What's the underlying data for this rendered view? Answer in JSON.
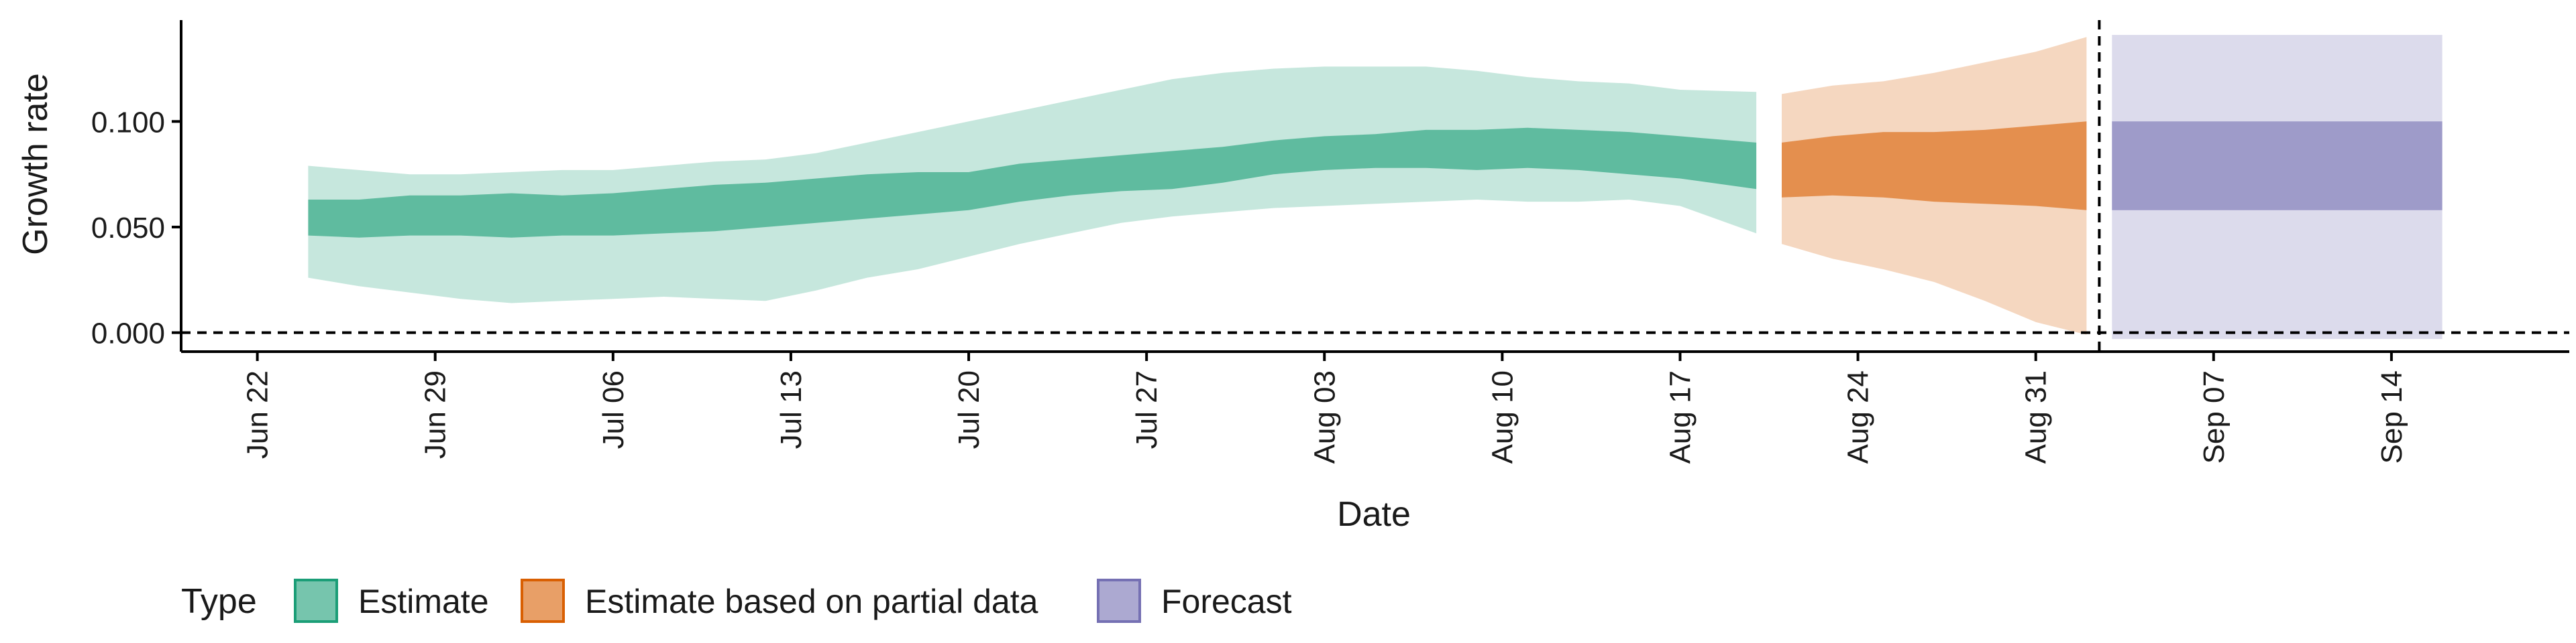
{
  "chart_data": {
    "type": "area",
    "xlabel": "Date",
    "ylabel": "Growth rate",
    "xlim": [
      "2020-06-19",
      "2020-09-21"
    ],
    "ylim": [
      -0.009,
      0.148
    ],
    "y_ticks": [
      0.0,
      0.05,
      0.1
    ],
    "y_tick_labels": [
      "0.000",
      "0.050",
      "0.100"
    ],
    "x_ticks": [
      "2020-06-22",
      "2020-06-29",
      "2020-07-06",
      "2020-07-13",
      "2020-07-20",
      "2020-07-27",
      "2020-08-03",
      "2020-08-10",
      "2020-08-17",
      "2020-08-24",
      "2020-08-31",
      "2020-09-07",
      "2020-09-14"
    ],
    "x_tick_labels": [
      "Jun 22",
      "Jun 29",
      "Jul 06",
      "Jul 13",
      "Jul 20",
      "Jul 27",
      "Aug 03",
      "Aug 10",
      "Aug 17",
      "Aug 24",
      "Aug 31",
      "Sep 07",
      "Sep 14"
    ],
    "reference_lines": {
      "horizontal_y": 0.0,
      "vertical_date": "2020-09-02",
      "style": "dashed"
    },
    "grid": false,
    "legend": {
      "title": "Type",
      "position": "bottom",
      "items": [
        {
          "label": "Estimate",
          "color": "#1b9e77"
        },
        {
          "label": "Estimate based on partial data",
          "color": "#d95f02"
        },
        {
          "label": "Forecast",
          "color": "#7570b3"
        }
      ]
    },
    "series": [
      {
        "name": "Estimate",
        "color": "#1b9e77",
        "x": [
          "2020-06-24",
          "2020-06-26",
          "2020-06-28",
          "2020-06-30",
          "2020-07-02",
          "2020-07-04",
          "2020-07-06",
          "2020-07-08",
          "2020-07-10",
          "2020-07-12",
          "2020-07-14",
          "2020-07-16",
          "2020-07-18",
          "2020-07-20",
          "2020-07-22",
          "2020-07-24",
          "2020-07-26",
          "2020-07-28",
          "2020-07-30",
          "2020-08-01",
          "2020-08-03",
          "2020-08-05",
          "2020-08-07",
          "2020-08-09",
          "2020-08-11",
          "2020-08-13",
          "2020-08-15",
          "2020-08-17",
          "2020-08-20"
        ],
        "lower_90": [
          0.026,
          0.022,
          0.019,
          0.016,
          0.014,
          0.015,
          0.016,
          0.017,
          0.016,
          0.015,
          0.02,
          0.026,
          0.03,
          0.036,
          0.042,
          0.047,
          0.052,
          0.055,
          0.057,
          0.059,
          0.06,
          0.061,
          0.062,
          0.063,
          0.062,
          0.062,
          0.063,
          0.06,
          0.047
        ],
        "lower_50": [
          0.046,
          0.045,
          0.046,
          0.046,
          0.045,
          0.046,
          0.046,
          0.047,
          0.048,
          0.05,
          0.052,
          0.054,
          0.056,
          0.058,
          0.062,
          0.065,
          0.067,
          0.068,
          0.071,
          0.075,
          0.077,
          0.078,
          0.078,
          0.077,
          0.078,
          0.077,
          0.075,
          0.073,
          0.068
        ],
        "median": [
          0.054,
          0.054,
          0.055,
          0.055,
          0.056,
          0.055,
          0.056,
          0.058,
          0.059,
          0.061,
          0.063,
          0.065,
          0.066,
          0.067,
          0.071,
          0.073,
          0.075,
          0.076,
          0.079,
          0.082,
          0.084,
          0.085,
          0.086,
          0.086,
          0.087,
          0.086,
          0.085,
          0.083,
          0.079
        ],
        "upper_50": [
          0.063,
          0.063,
          0.065,
          0.065,
          0.066,
          0.065,
          0.066,
          0.068,
          0.07,
          0.071,
          0.073,
          0.075,
          0.076,
          0.076,
          0.08,
          0.082,
          0.084,
          0.086,
          0.088,
          0.091,
          0.093,
          0.094,
          0.096,
          0.096,
          0.097,
          0.096,
          0.095,
          0.093,
          0.09
        ],
        "upper_90": [
          0.079,
          0.077,
          0.075,
          0.075,
          0.076,
          0.077,
          0.077,
          0.079,
          0.081,
          0.082,
          0.085,
          0.09,
          0.095,
          0.1,
          0.105,
          0.11,
          0.115,
          0.12,
          0.123,
          0.125,
          0.126,
          0.126,
          0.126,
          0.124,
          0.121,
          0.119,
          0.118,
          0.115,
          0.114
        ]
      },
      {
        "name": "Estimate based on partial data",
        "color": "#d95f02",
        "x": [
          "2020-08-21",
          "2020-08-23",
          "2020-08-25",
          "2020-08-27",
          "2020-08-29",
          "2020-08-31",
          "2020-09-02"
        ],
        "lower_90": [
          0.042,
          0.035,
          0.03,
          0.024,
          0.015,
          0.005,
          -0.001
        ],
        "lower_50": [
          0.064,
          0.065,
          0.064,
          0.062,
          0.061,
          0.06,
          0.058
        ],
        "median": [
          0.075,
          0.077,
          0.078,
          0.078,
          0.078,
          0.078,
          0.078
        ],
        "upper_50": [
          0.09,
          0.093,
          0.095,
          0.095,
          0.096,
          0.098,
          0.1
        ],
        "upper_90": [
          0.113,
          0.117,
          0.119,
          0.123,
          0.128,
          0.133,
          0.14
        ]
      },
      {
        "name": "Forecast",
        "color": "#7570b3",
        "x": [
          "2020-09-03",
          "2020-09-16"
        ],
        "lower_90": [
          -0.003,
          -0.003
        ],
        "lower_50": [
          0.058,
          0.058
        ],
        "median": [
          0.079,
          0.079
        ],
        "upper_50": [
          0.1,
          0.1
        ],
        "upper_90": [
          0.141,
          0.141
        ]
      }
    ]
  }
}
